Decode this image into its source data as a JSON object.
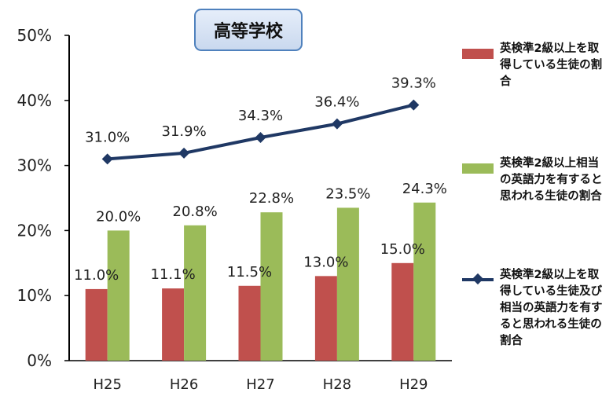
{
  "chart_data": {
    "type": "bar",
    "title": "高等学校",
    "categories": [
      "H25",
      "H26",
      "H27",
      "H28",
      "H29"
    ],
    "y_ticks": [
      "0%",
      "10%",
      "20%",
      "30%",
      "40%",
      "50%"
    ],
    "ylim": [
      0,
      50
    ],
    "grid": false,
    "legend_position": "right",
    "series": [
      {
        "name": "英検準2級以上を取得している生徒の割合",
        "kind": "bar",
        "color": "#c0504d",
        "values": [
          11.0,
          11.1,
          11.5,
          13.0,
          15.0
        ],
        "labels": [
          "11.0%",
          "11.1%",
          "11.5%",
          "13.0%",
          "15.0%"
        ]
      },
      {
        "name": "英検準2級以上相当の英語力を有すると思われる生徒の割合",
        "kind": "bar",
        "color": "#9bbb59",
        "values": [
          20.0,
          20.8,
          22.8,
          23.5,
          24.3
        ],
        "labels": [
          "20.0%",
          "20.8%",
          "22.8%",
          "23.5%",
          "24.3%"
        ]
      },
      {
        "name": "英検準2級以上を取得している生徒及び相当の英語力を有すると思われる生徒の割合",
        "kind": "line",
        "marker": "diamond",
        "color": "#1f3864",
        "values": [
          31.0,
          31.9,
          34.3,
          36.4,
          39.3
        ],
        "labels": [
          "31.0%",
          "31.9%",
          "34.3%",
          "36.4%",
          "39.3%"
        ]
      }
    ]
  }
}
